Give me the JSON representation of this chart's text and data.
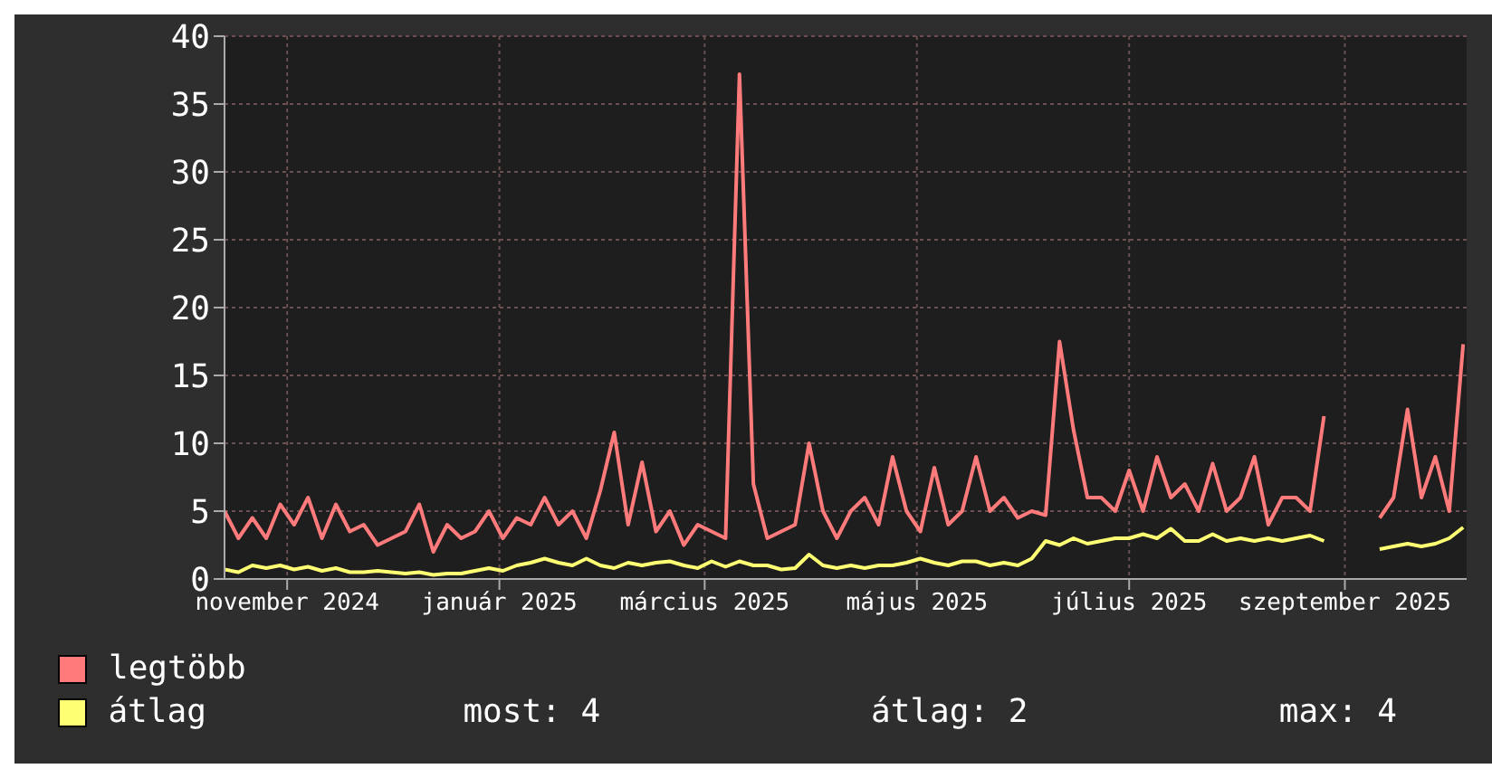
{
  "chart_data": {
    "type": "line",
    "x": [
      "2024-10-14",
      "2024-10-18",
      "2024-10-22",
      "2024-10-26",
      "2024-10-30",
      "2024-11-03",
      "2024-11-07",
      "2024-11-11",
      "2024-11-15",
      "2024-11-19",
      "2024-11-23",
      "2024-11-27",
      "2024-12-01",
      "2024-12-05",
      "2024-12-09",
      "2024-12-13",
      "2024-12-17",
      "2024-12-21",
      "2024-12-25",
      "2024-12-29",
      "2025-01-02",
      "2025-01-06",
      "2025-01-10",
      "2025-01-14",
      "2025-01-18",
      "2025-01-22",
      "2025-01-26",
      "2025-01-30",
      "2025-02-03",
      "2025-02-07",
      "2025-02-11",
      "2025-02-15",
      "2025-02-19",
      "2025-02-23",
      "2025-02-27",
      "2025-03-03",
      "2025-03-07",
      "2025-03-11",
      "2025-03-15",
      "2025-03-19",
      "2025-03-23",
      "2025-03-27",
      "2025-03-31",
      "2025-04-04",
      "2025-04-08",
      "2025-04-12",
      "2025-04-16",
      "2025-04-20",
      "2025-04-24",
      "2025-04-28",
      "2025-05-02",
      "2025-05-06",
      "2025-05-10",
      "2025-05-14",
      "2025-05-18",
      "2025-05-22",
      "2025-05-26",
      "2025-05-30",
      "2025-06-03",
      "2025-06-07",
      "2025-06-11",
      "2025-06-15",
      "2025-06-19",
      "2025-06-23",
      "2025-06-27",
      "2025-07-01",
      "2025-07-05",
      "2025-07-09",
      "2025-07-13",
      "2025-07-17",
      "2025-07-21",
      "2025-07-25",
      "2025-07-29",
      "2025-08-02",
      "2025-08-06",
      "2025-08-10",
      "2025-08-14",
      "2025-08-18",
      "2025-08-22",
      "2025-08-26",
      "2025-08-30",
      "2025-09-03",
      "2025-09-07",
      "2025-09-11",
      "2025-09-15",
      "2025-09-19",
      "2025-09-23",
      "2025-09-27",
      "2025-10-01",
      "2025-10-05"
    ],
    "series": [
      {
        "name": "legtöbb",
        "color": "#ff7b7b",
        "values": [
          5,
          3,
          4.5,
          3,
          5.5,
          4,
          6,
          3,
          5.5,
          3.5,
          4,
          2.5,
          3,
          3.5,
          5.5,
          2,
          4,
          3,
          3.5,
          5,
          3,
          4.5,
          4,
          6,
          4,
          5,
          3,
          6.5,
          10.8,
          4,
          8.6,
          3.5,
          5,
          2.5,
          4,
          3.5,
          3,
          37.2,
          7,
          3,
          3.5,
          4,
          10,
          5,
          3,
          5,
          6,
          4,
          9,
          5,
          3.5,
          8.2,
          4,
          5,
          9,
          5,
          6,
          4.5,
          5,
          4.7,
          17.5,
          11,
          6,
          6,
          5,
          8,
          5,
          9,
          6,
          7,
          5,
          8.5,
          5,
          6,
          9,
          4,
          6,
          6,
          5,
          12,
          null,
          null,
          null,
          4.5,
          6,
          12.5,
          6,
          9,
          5,
          17.3
        ]
      },
      {
        "name": "átlag",
        "color": "#ffff73",
        "values": [
          0.7,
          0.5,
          1,
          0.8,
          1,
          0.7,
          0.9,
          0.6,
          0.8,
          0.5,
          0.5,
          0.6,
          0.5,
          0.4,
          0.5,
          0.3,
          0.4,
          0.4,
          0.6,
          0.8,
          0.6,
          1,
          1.2,
          1.5,
          1.2,
          1,
          1.5,
          1,
          0.8,
          1.2,
          1,
          1.2,
          1.3,
          1,
          0.8,
          1.3,
          0.9,
          1.3,
          1,
          1,
          0.7,
          0.8,
          1.8,
          1,
          0.8,
          1,
          0.8,
          1,
          1,
          1.2,
          1.5,
          1.2,
          1,
          1.3,
          1.3,
          1,
          1.2,
          1,
          1.5,
          2.8,
          2.5,
          3,
          2.6,
          2.8,
          3,
          3,
          3.3,
          3,
          3.7,
          2.8,
          2.8,
          3.3,
          2.8,
          3,
          2.8,
          3,
          2.8,
          3,
          3.2,
          2.8,
          null,
          null,
          null,
          2.2,
          2.4,
          2.6,
          2.4,
          2.6,
          3,
          3.8
        ]
      }
    ],
    "xlim": [
      "2024-10-14",
      "2025-10-06"
    ],
    "xticks": [
      {
        "value": "2024-11-01",
        "label": "november 2024"
      },
      {
        "value": "2025-01-01",
        "label": "január 2025"
      },
      {
        "value": "2025-03-01",
        "label": "március 2025"
      },
      {
        "value": "2025-05-01",
        "label": "május 2025"
      },
      {
        "value": "2025-07-01",
        "label": "július 2025"
      },
      {
        "value": "2025-09-01",
        "label": "szeptember 2025"
      }
    ],
    "ylim": [
      0,
      40
    ],
    "yticks": [
      0,
      5,
      10,
      15,
      20,
      25,
      30,
      35,
      40
    ],
    "grid": true,
    "legend": "bottom",
    "annotations": [
      "most: 4",
      "átlag: 2",
      "max: 4"
    ]
  }
}
